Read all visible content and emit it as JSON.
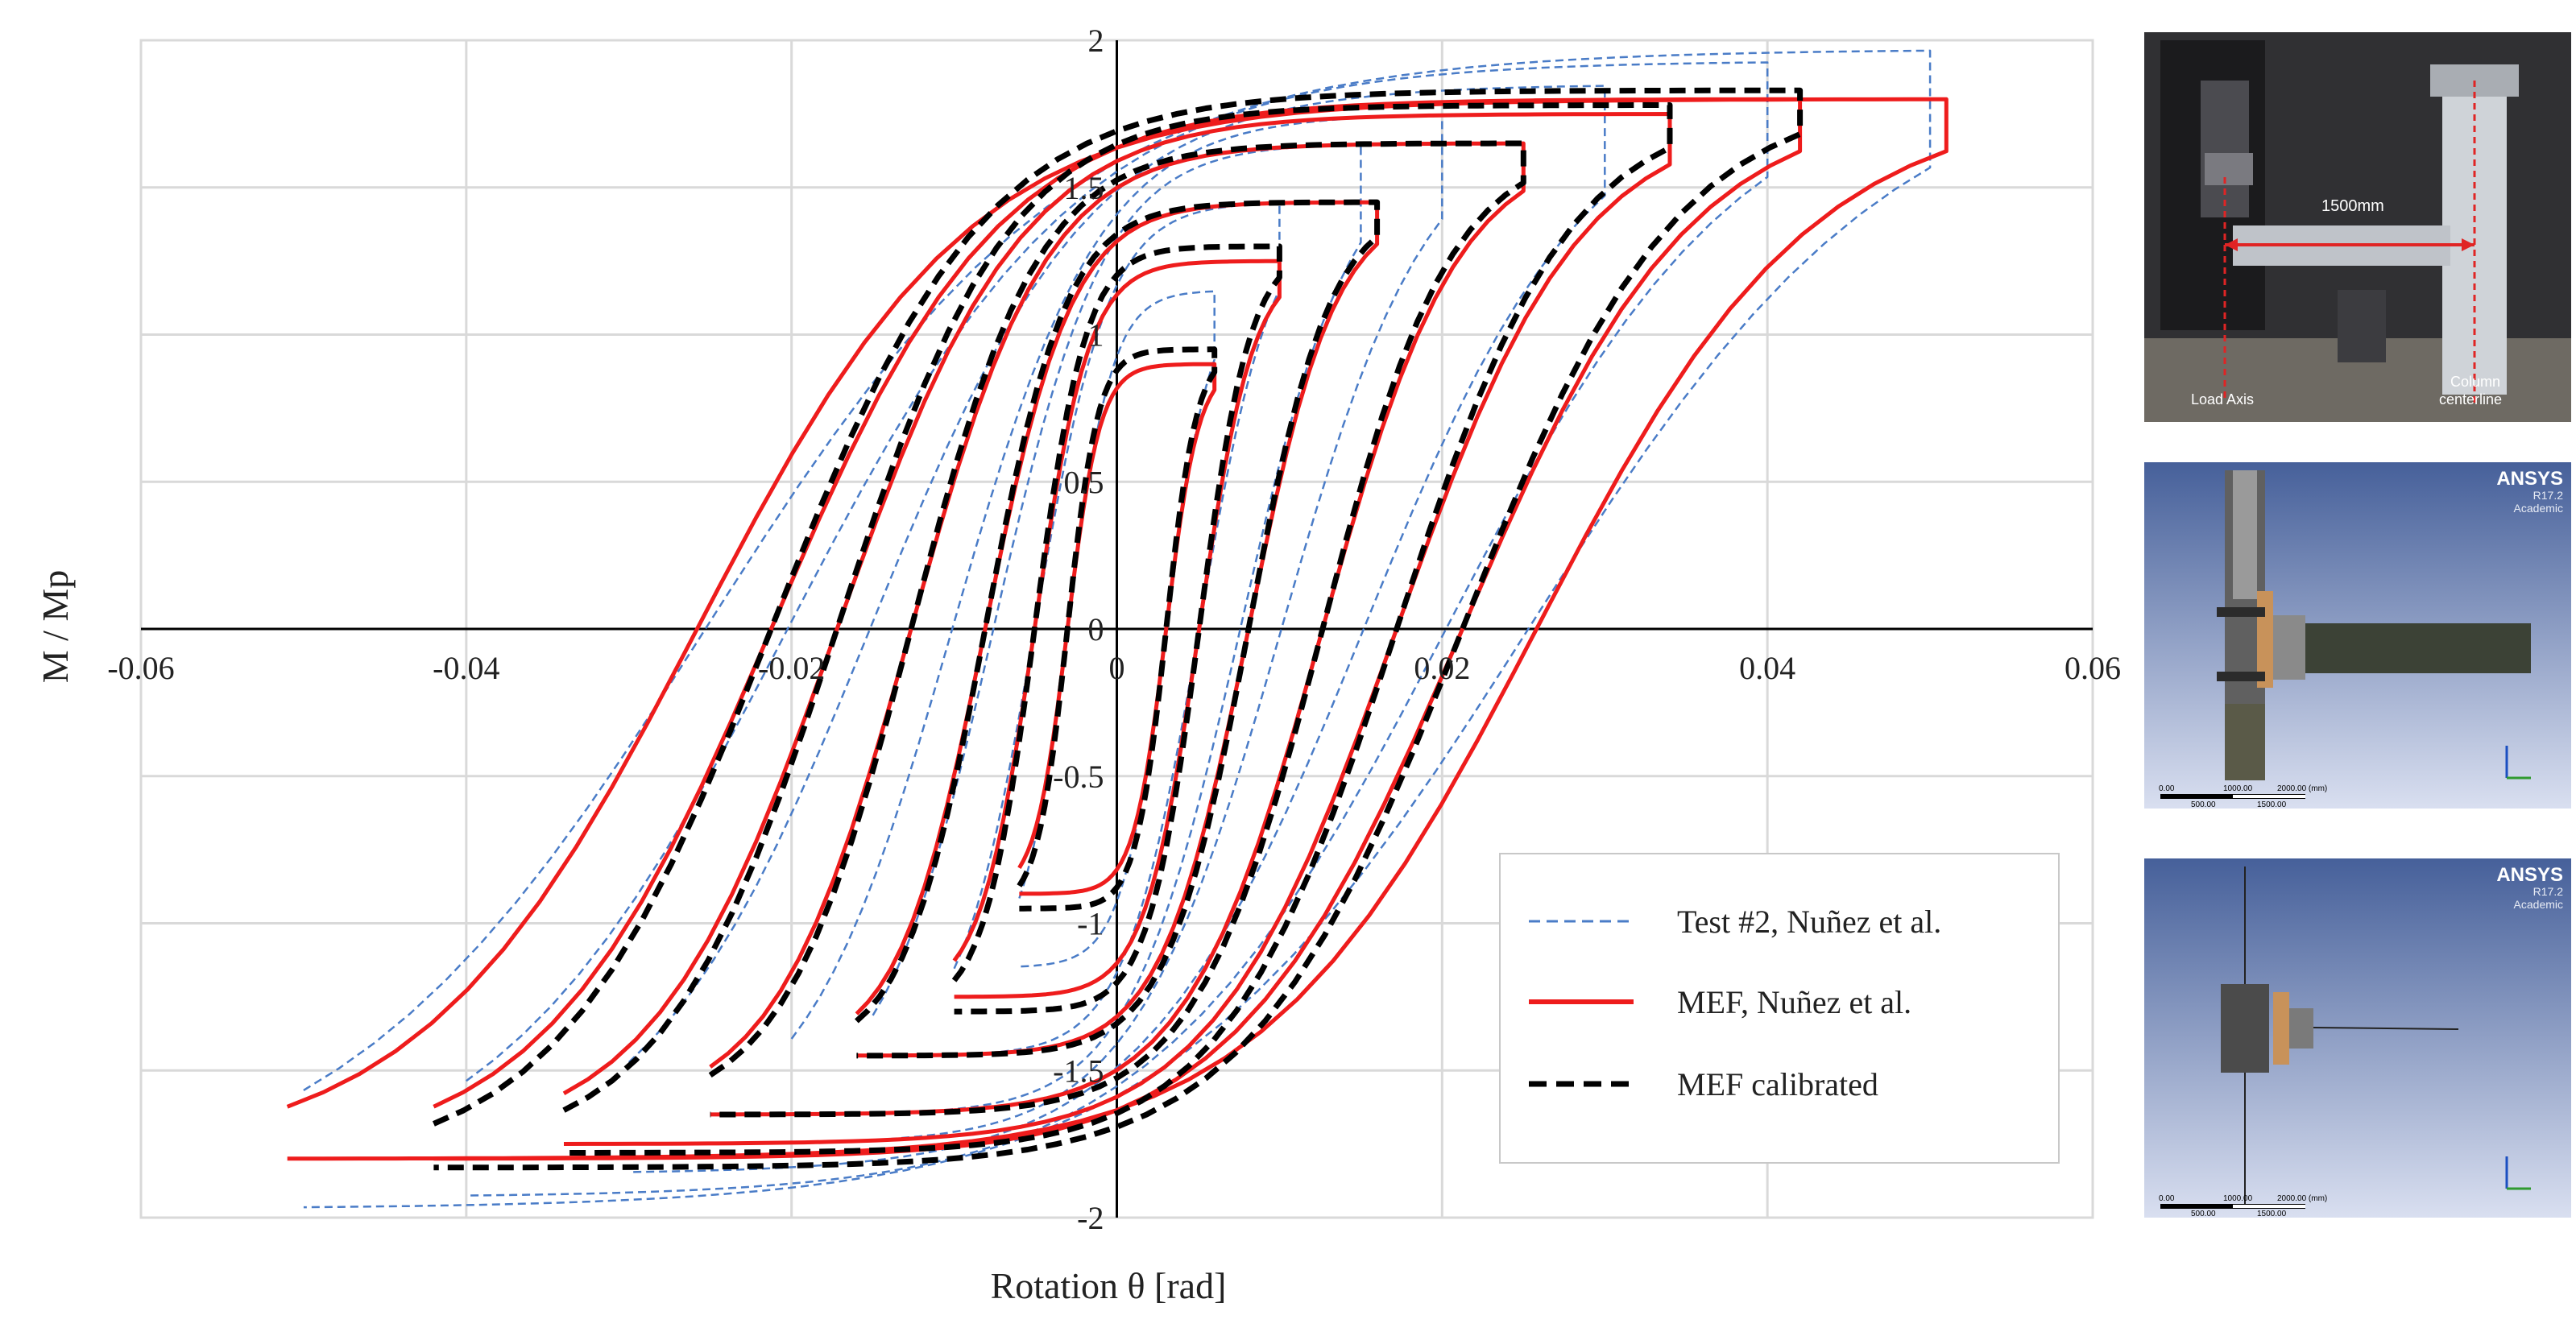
{
  "chart_data": {
    "type": "line",
    "xlabel": "Rotation θ [rad]",
    "ylabel": "M / Mp",
    "xlim": [
      -0.06,
      0.06
    ],
    "ylim": [
      -2,
      2
    ],
    "x_ticks": [
      "-0.06",
      "-0.04",
      "-0.02",
      "0",
      "0.02",
      "0.04",
      "0.06"
    ],
    "x_tick_values": [
      -0.06,
      -0.04,
      -0.02,
      0,
      0.02,
      0.04,
      0.06
    ],
    "y_ticks": [
      "2",
      "1.5",
      "1",
      "0.5",
      "0",
      "-0.5",
      "-1",
      "-1.5",
      "-2"
    ],
    "y_tick_values": [
      2,
      1.5,
      1,
      0.5,
      0,
      -0.5,
      -1,
      -1.5,
      -2
    ],
    "grid": true,
    "legend_position": "bottom-right",
    "series": [
      {
        "name": "Test #2, Nuñez et al.",
        "color": "#4a7cc7",
        "style": "dashed-thin",
        "loops": [
          {
            "amp": 0.006,
            "m": 1.15
          },
          {
            "amp": 0.01,
            "m": 1.45
          },
          {
            "amp": 0.015,
            "m": 1.65
          },
          {
            "amp": 0.02,
            "m": 1.75
          },
          {
            "amp": 0.03,
            "m": 1.85
          },
          {
            "amp": 0.04,
            "m": 1.93
          },
          {
            "amp": 0.05,
            "m": 1.97
          }
        ]
      },
      {
        "name": "MEF, Nuñez et al.",
        "color": "#ee1c1c",
        "style": "solid",
        "loops": [
          {
            "amp": 0.006,
            "m": 0.9
          },
          {
            "amp": 0.01,
            "m": 1.25
          },
          {
            "amp": 0.016,
            "m": 1.45
          },
          {
            "amp": 0.025,
            "m": 1.65
          },
          {
            "amp": 0.034,
            "m": 1.75
          },
          {
            "amp": 0.042,
            "m": 1.8
          },
          {
            "amp": 0.051,
            "m": 1.8
          }
        ]
      },
      {
        "name": "MEF calibrated",
        "color": "#000000",
        "style": "dashed-thick",
        "loops": [
          {
            "amp": 0.006,
            "m": 0.95
          },
          {
            "amp": 0.01,
            "m": 1.3
          },
          {
            "amp": 0.016,
            "m": 1.45
          },
          {
            "amp": 0.025,
            "m": 1.65
          },
          {
            "amp": 0.034,
            "m": 1.78
          },
          {
            "amp": 0.042,
            "m": 1.83
          }
        ]
      }
    ]
  },
  "panels": {
    "photo": {
      "dimension": "1500mm",
      "load_axis": "Load Axis",
      "column_line1": "Column",
      "column_line2": "centerline"
    },
    "model1": {
      "brand": "ANSYS",
      "version": "R17.2",
      "edition": "Academic",
      "scale_a": "0.00",
      "scale_b": "1000.00",
      "scale_c": "2000.00 (mm)",
      "scale_d": "500.00",
      "scale_e": "1500.00"
    },
    "model2": {
      "brand": "ANSYS",
      "version": "R17.2",
      "edition": "Academic",
      "scale_a": "0.00",
      "scale_b": "1000.00",
      "scale_c": "2000.00 (mm)",
      "scale_d": "500.00",
      "scale_e": "1500.00"
    }
  },
  "colors": {
    "grid": "#d9d9d9",
    "axis": "#000000"
  }
}
